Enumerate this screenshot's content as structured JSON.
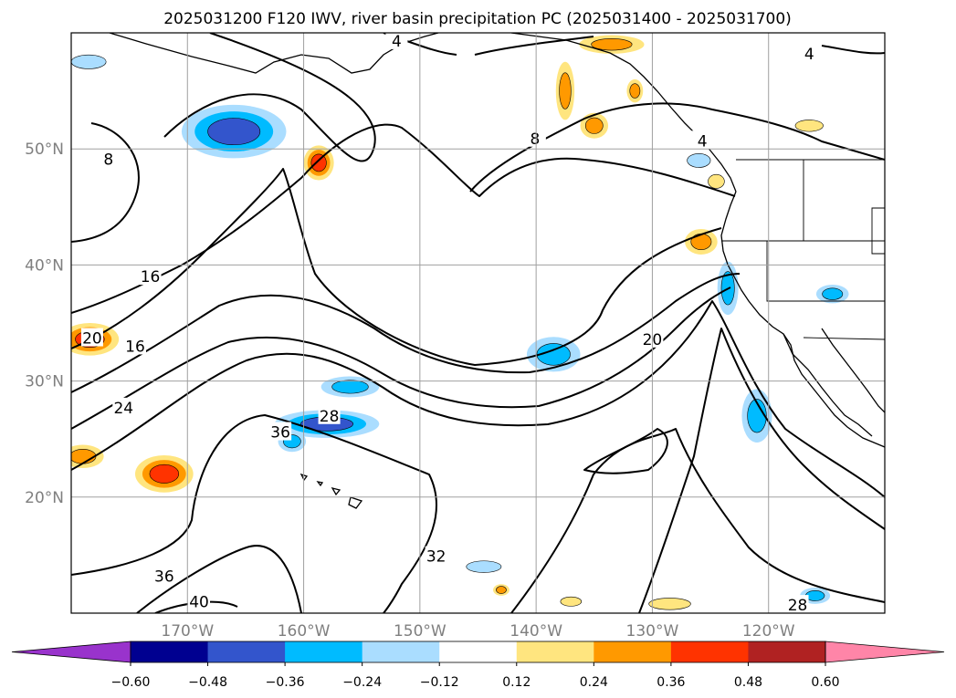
{
  "title": "2025031200 F120 IWV, river basin precipitation PC (2025031400 - 2025031700)",
  "map": {
    "lon_range": [
      -180,
      -110
    ],
    "lat_range": [
      10,
      60
    ],
    "lat_ticks": [
      {
        "lat": 20,
        "label": "20°N"
      },
      {
        "lat": 30,
        "label": "30°N"
      },
      {
        "lat": 40,
        "label": "40°N"
      },
      {
        "lat": 50,
        "label": "50°N"
      }
    ],
    "lon_ticks": [
      {
        "lon": -170,
        "label": "170°W"
      },
      {
        "lon": -160,
        "label": "160°W"
      },
      {
        "lon": -150,
        "label": "150°W"
      },
      {
        "lon": -140,
        "label": "140°W"
      },
      {
        "lon": -130,
        "label": "130°W"
      },
      {
        "lon": -120,
        "label": "120°W"
      }
    ],
    "grid": true,
    "contour_labels": [
      {
        "text": "4",
        "lon": -152,
        "lat": 59.3
      },
      {
        "text": "4",
        "lon": -116.5,
        "lat": 58.2
      },
      {
        "text": "4",
        "lon": -125.7,
        "lat": 50.7
      },
      {
        "text": "8",
        "lon": -176.8,
        "lat": 49.1
      },
      {
        "text": "8",
        "lon": -140.1,
        "lat": 50.9
      },
      {
        "text": "16",
        "lon": -173.2,
        "lat": 39.0
      },
      {
        "text": "16",
        "lon": -174.5,
        "lat": 33.0
      },
      {
        "text": "20",
        "lon": -178.2,
        "lat": 33.7
      },
      {
        "text": "20",
        "lon": -130.0,
        "lat": 33.6
      },
      {
        "text": "24",
        "lon": -175.5,
        "lat": 27.7
      },
      {
        "text": "28",
        "lon": -157.8,
        "lat": 27.0
      },
      {
        "text": "28",
        "lon": -117.5,
        "lat": 10.7
      },
      {
        "text": "32",
        "lon": -148.6,
        "lat": 14.9
      },
      {
        "text": "36",
        "lon": -162.0,
        "lat": 25.6
      },
      {
        "text": "36",
        "lon": -172.0,
        "lat": 13.2
      },
      {
        "text": "40",
        "lon": -169.0,
        "lat": 11.0
      }
    ]
  },
  "colorbar": {
    "extend": "both",
    "levels": [
      -0.6,
      -0.48,
      -0.36,
      -0.24,
      -0.12,
      0.12,
      0.24,
      0.36,
      0.48,
      0.6
    ],
    "colors": [
      "#9933cc",
      "#000090",
      "#3355cc",
      "#00bbff",
      "#aaddff",
      "#ffffff",
      "#ffe57f",
      "#ff9900",
      "#ff3300",
      "#b02222",
      "#ff85a8"
    ],
    "tick_labels": [
      "−0.60",
      "−0.48",
      "−0.36",
      "−0.24",
      "−0.12",
      "0.12",
      "0.24",
      "0.36",
      "0.48",
      "0.60"
    ]
  },
  "precip_blobs": [
    {
      "lon": -166,
      "lat": 51.5,
      "rx": 4.5,
      "ry": 2.3,
      "value": -0.4
    },
    {
      "lon": -158,
      "lat": 26.3,
      "rx": 4.5,
      "ry": 1.2,
      "value": -0.4
    },
    {
      "lon": -161,
      "lat": 24.8,
      "rx": 1.2,
      "ry": 0.9,
      "value": -0.3
    },
    {
      "lon": -156,
      "lat": 29.5,
      "rx": 2.5,
      "ry": 0.9,
      "value": -0.3
    },
    {
      "lon": -138.5,
      "lat": 32.3,
      "rx": 2.3,
      "ry": 1.5,
      "value": -0.3
    },
    {
      "lon": -121,
      "lat": 27.0,
      "rx": 1.3,
      "ry": 2.3,
      "value": -0.3
    },
    {
      "lon": -123.5,
      "lat": 38.0,
      "rx": 0.9,
      "ry": 2.3,
      "value": -0.3
    },
    {
      "lon": -114.5,
      "lat": 37.5,
      "rx": 1.4,
      "ry": 0.8,
      "value": -0.3
    },
    {
      "lon": -116,
      "lat": 11.5,
      "rx": 1.3,
      "ry": 0.7,
      "value": -0.3
    },
    {
      "lon": -144.5,
      "lat": 14.0,
      "rx": 1.5,
      "ry": 0.5,
      "value": -0.2
    },
    {
      "lon": -178.5,
      "lat": 57.5,
      "rx": 1.5,
      "ry": 0.6,
      "value": -0.2
    },
    {
      "lon": -126,
      "lat": 49.0,
      "rx": 1.0,
      "ry": 0.6,
      "value": -0.2
    },
    {
      "lon": -158.7,
      "lat": 48.8,
      "rx": 1.3,
      "ry": 1.5,
      "value": 0.45
    },
    {
      "lon": -178.4,
      "lat": 33.6,
      "rx": 2.5,
      "ry": 1.4,
      "value": 0.45
    },
    {
      "lon": -172,
      "lat": 22.0,
      "rx": 2.5,
      "ry": 1.6,
      "value": 0.42
    },
    {
      "lon": -179,
      "lat": 23.5,
      "rx": 1.8,
      "ry": 1.0,
      "value": 0.3
    },
    {
      "lon": -125.8,
      "lat": 42.0,
      "rx": 1.4,
      "ry": 1.1,
      "value": 0.3
    },
    {
      "lon": -133.5,
      "lat": 59.0,
      "rx": 2.8,
      "ry": 0.8,
      "value": 0.3
    },
    {
      "lon": -137.5,
      "lat": 55.0,
      "rx": 0.8,
      "ry": 2.5,
      "value": 0.3
    },
    {
      "lon": -131.5,
      "lat": 55.0,
      "rx": 0.7,
      "ry": 1.0,
      "value": 0.3
    },
    {
      "lon": -135.0,
      "lat": 52.0,
      "rx": 1.2,
      "ry": 1.1,
      "value": 0.3
    },
    {
      "lon": -116.5,
      "lat": 52.0,
      "rx": 1.2,
      "ry": 0.5,
      "value": 0.2
    },
    {
      "lon": -124.5,
      "lat": 47.2,
      "rx": 0.7,
      "ry": 0.6,
      "value": 0.2
    },
    {
      "lon": -128.5,
      "lat": 10.8,
      "rx": 1.8,
      "ry": 0.5,
      "value": 0.25
    },
    {
      "lon": -137,
      "lat": 11.0,
      "rx": 0.9,
      "ry": 0.4,
      "value": 0.2
    },
    {
      "lon": -143,
      "lat": 12.0,
      "rx": 0.7,
      "ry": 0.5,
      "value": 0.3
    }
  ]
}
